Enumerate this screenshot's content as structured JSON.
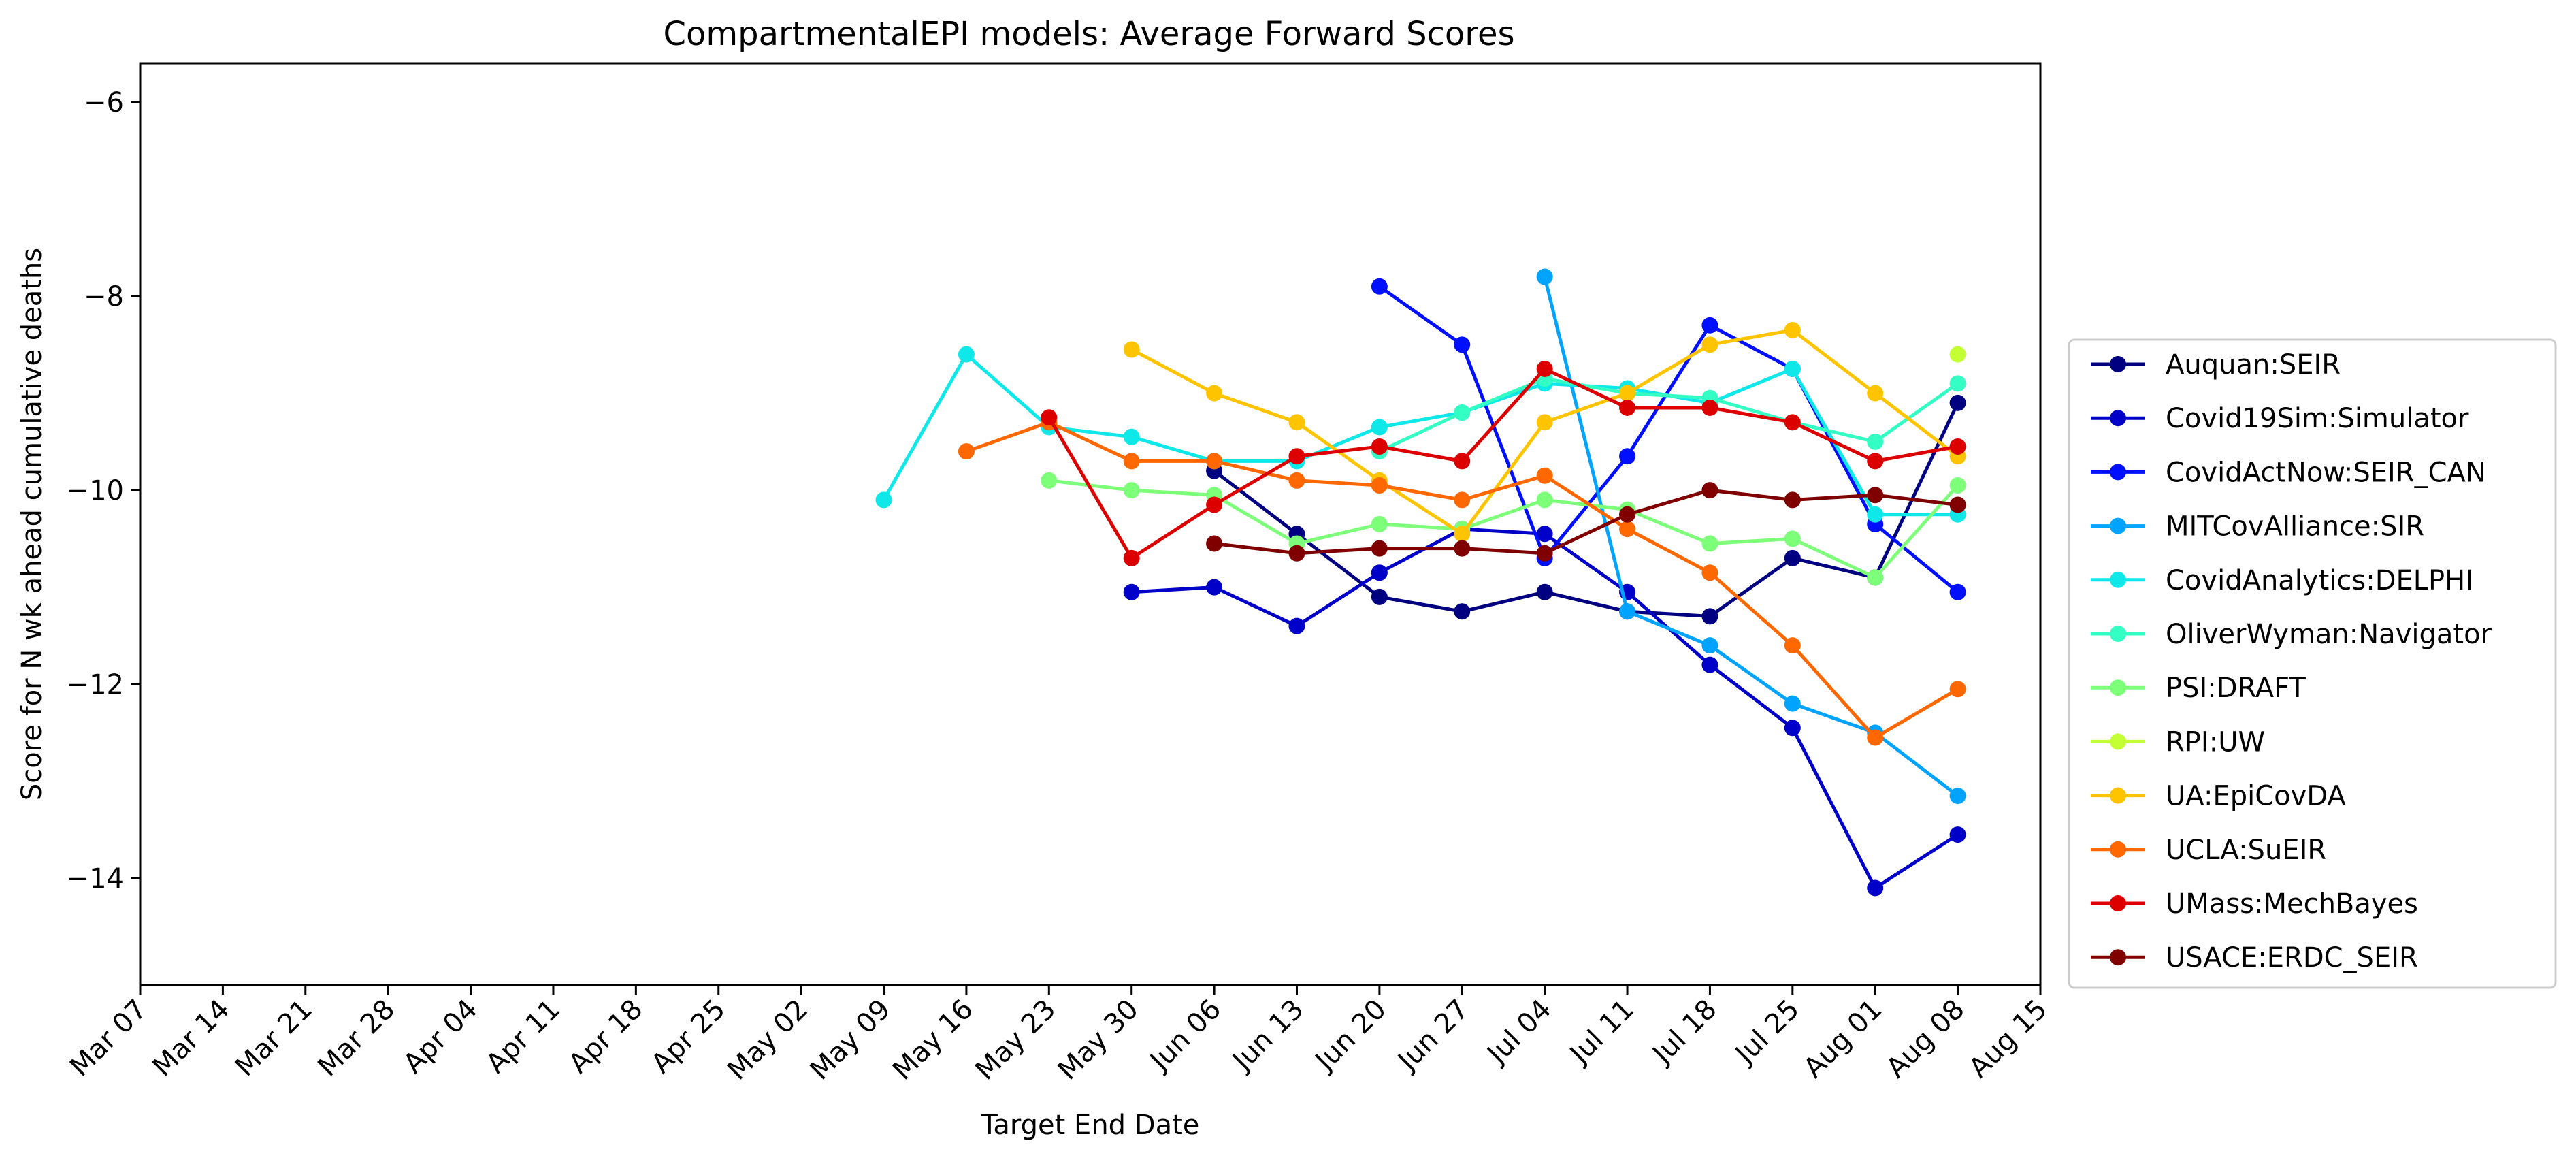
{
  "chart_data": {
    "type": "line",
    "title": "CompartmentalEPI models: Average Forward Scores",
    "xlabel": "Target End Date",
    "ylabel": "Score for N wk ahead cumulative deaths",
    "x_ticks": [
      "Mar 07",
      "Mar 14",
      "Mar 21",
      "Mar 28",
      "Apr 04",
      "Apr 11",
      "Apr 18",
      "Apr 25",
      "May 02",
      "May 09",
      "May 16",
      "May 23",
      "May 30",
      "Jun 06",
      "Jun 13",
      "Jun 20",
      "Jun 27",
      "Jul 04",
      "Jul 11",
      "Jul 18",
      "Jul 25",
      "Aug 01",
      "Aug 08",
      "Aug 15"
    ],
    "y_ticks": [
      -6,
      -8,
      -10,
      -12,
      -14
    ],
    "y_tick_labels": [
      "−6",
      "−8",
      "−10",
      "−12",
      "−14"
    ],
    "ylim": [
      -15.1,
      -5.6
    ],
    "grid": false,
    "legend_position": "right-outside",
    "series": [
      {
        "name": "Auquan:SEIR",
        "color": "#000080",
        "points": [
          [
            "Jun 06",
            -9.8
          ],
          [
            "Jun 13",
            -10.45
          ],
          [
            "Jun 20",
            -11.1
          ],
          [
            "Jun 27",
            -11.25
          ],
          [
            "Jul 04",
            -11.05
          ],
          [
            "Jul 11",
            -11.25
          ],
          [
            "Jul 18",
            -11.3
          ],
          [
            "Jul 25",
            -10.7
          ],
          [
            "Aug 01",
            -10.9
          ],
          [
            "Aug 08",
            -9.1
          ]
        ]
      },
      {
        "name": "Covid19Sim:Simulator",
        "color": "#0000C8",
        "points": [
          [
            "May 30",
            -11.05
          ],
          [
            "Jun 06",
            -11.0
          ],
          [
            "Jun 13",
            -11.4
          ],
          [
            "Jun 20",
            -10.85
          ],
          [
            "Jun 27",
            -10.4
          ],
          [
            "Jul 04",
            -10.45
          ],
          [
            "Jul 11",
            -11.05
          ],
          [
            "Jul 18",
            -11.8
          ],
          [
            "Jul 25",
            -12.45
          ],
          [
            "Aug 01",
            -14.1
          ],
          [
            "Aug 08",
            -13.55
          ]
        ]
      },
      {
        "name": "CovidActNow:SEIR_CAN",
        "color": "#0010FF",
        "points": [
          [
            "Jun 20",
            -7.9
          ],
          [
            "Jun 27",
            -8.5
          ],
          [
            "Jul 04",
            -10.7
          ],
          [
            "Jul 11",
            -9.65
          ],
          [
            "Jul 18",
            -8.3
          ],
          [
            "Jul 25",
            -8.75
          ],
          [
            "Aug 01",
            -10.35
          ],
          [
            "Aug 08",
            -11.05
          ]
        ]
      },
      {
        "name": "MITCovAlliance:SIR",
        "color": "#00A4FF",
        "points": [
          [
            "Jul 04",
            -7.8
          ],
          [
            "Jul 11",
            -11.25
          ],
          [
            "Jul 18",
            -11.6
          ],
          [
            "Jul 25",
            -12.2
          ],
          [
            "Aug 01",
            -12.5
          ],
          [
            "Aug 08",
            -13.15
          ]
        ]
      },
      {
        "name": "CovidAnalytics:DELPHI",
        "color": "#0EE8E8",
        "points": [
          [
            "May 09",
            -10.1
          ],
          [
            "May 16",
            -8.6
          ],
          [
            "May 23",
            -9.35
          ],
          [
            "May 30",
            -9.45
          ],
          [
            "Jun 06",
            -9.7
          ],
          [
            "Jun 13",
            -9.7
          ],
          [
            "Jun 20",
            -9.35
          ],
          [
            "Jun 27",
            -9.2
          ],
          [
            "Jul 04",
            -8.9
          ],
          [
            "Jul 11",
            -8.95
          ],
          [
            "Jul 18",
            -9.1
          ],
          [
            "Jul 25",
            -8.75
          ],
          [
            "Aug 01",
            -10.25
          ],
          [
            "Aug 08",
            -10.25
          ]
        ]
      },
      {
        "name": "OliverWyman:Navigator",
        "color": "#33FFC4",
        "points": [
          [
            "Jun 20",
            -9.6
          ],
          [
            "Jun 27",
            -9.2
          ],
          [
            "Jul 04",
            -8.85
          ],
          [
            "Jul 11",
            -9.0
          ],
          [
            "Jul 18",
            -9.05
          ],
          [
            "Jul 25",
            -9.3
          ],
          [
            "Aug 01",
            -9.5
          ],
          [
            "Aug 08",
            -8.9
          ]
        ]
      },
      {
        "name": "PSI:DRAFT",
        "color": "#7DFF7A",
        "points": [
          [
            "May 23",
            -9.9
          ],
          [
            "May 30",
            -10.0
          ],
          [
            "Jun 06",
            -10.05
          ],
          [
            "Jun 13",
            -10.55
          ],
          [
            "Jun 20",
            -10.35
          ],
          [
            "Jun 27",
            -10.4
          ],
          [
            "Jul 04",
            -10.1
          ],
          [
            "Jul 11",
            -10.2
          ],
          [
            "Jul 18",
            -10.55
          ],
          [
            "Jul 25",
            -10.5
          ],
          [
            "Aug 01",
            -10.9
          ],
          [
            "Aug 08",
            -9.95
          ]
        ]
      },
      {
        "name": "RPI:UW",
        "color": "#C4FF33",
        "points": [
          [
            "Aug 08",
            -8.6
          ]
        ]
      },
      {
        "name": "UA:EpiCovDA",
        "color": "#FFC400",
        "points": [
          [
            "May 30",
            -8.55
          ],
          [
            "Jun 06",
            -9.0
          ],
          [
            "Jun 13",
            -9.3
          ],
          [
            "Jun 20",
            -9.9
          ],
          [
            "Jun 27",
            -10.45
          ],
          [
            "Jul 04",
            -9.3
          ],
          [
            "Jul 11",
            -9.0
          ],
          [
            "Jul 18",
            -8.5
          ],
          [
            "Jul 25",
            -8.35
          ],
          [
            "Aug 01",
            -9.0
          ],
          [
            "Aug 08",
            -9.65
          ]
        ]
      },
      {
        "name": "UCLA:SuEIR",
        "color": "#FF6800",
        "points": [
          [
            "May 16",
            -9.6
          ],
          [
            "May 23",
            -9.3
          ],
          [
            "May 30",
            -9.7
          ],
          [
            "Jun 06",
            -9.7
          ],
          [
            "Jun 13",
            -9.9
          ],
          [
            "Jun 20",
            -9.95
          ],
          [
            "Jun 27",
            -10.1
          ],
          [
            "Jul 04",
            -9.85
          ],
          [
            "Jul 11",
            -10.4
          ],
          [
            "Jul 18",
            -10.85
          ],
          [
            "Jul 25",
            -11.6
          ],
          [
            "Aug 01",
            -12.55
          ],
          [
            "Aug 08",
            -12.05
          ]
        ]
      },
      {
        "name": "UMass:MechBayes",
        "color": "#DC0000",
        "points": [
          [
            "May 23",
            -9.25
          ],
          [
            "May 30",
            -10.7
          ],
          [
            "Jun 06",
            -10.15
          ],
          [
            "Jun 13",
            -9.65
          ],
          [
            "Jun 20",
            -9.55
          ],
          [
            "Jun 27",
            -9.7
          ],
          [
            "Jul 04",
            -8.75
          ],
          [
            "Jul 11",
            -9.15
          ],
          [
            "Jul 18",
            -9.15
          ],
          [
            "Jul 25",
            -9.3
          ],
          [
            "Aug 01",
            -9.7
          ],
          [
            "Aug 08",
            -9.55
          ]
        ]
      },
      {
        "name": "USACE:ERDC_SEIR",
        "color": "#800000",
        "points": [
          [
            "Jun 06",
            -10.55
          ],
          [
            "Jun 13",
            -10.65
          ],
          [
            "Jun 20",
            -10.6
          ],
          [
            "Jun 27",
            -10.6
          ],
          [
            "Jul 04",
            -10.65
          ],
          [
            "Jul 11",
            -10.25
          ],
          [
            "Jul 18",
            -10.0
          ],
          [
            "Jul 25",
            -10.1
          ],
          [
            "Aug 01",
            -10.05
          ],
          [
            "Aug 08",
            -10.15
          ]
        ]
      }
    ]
  }
}
